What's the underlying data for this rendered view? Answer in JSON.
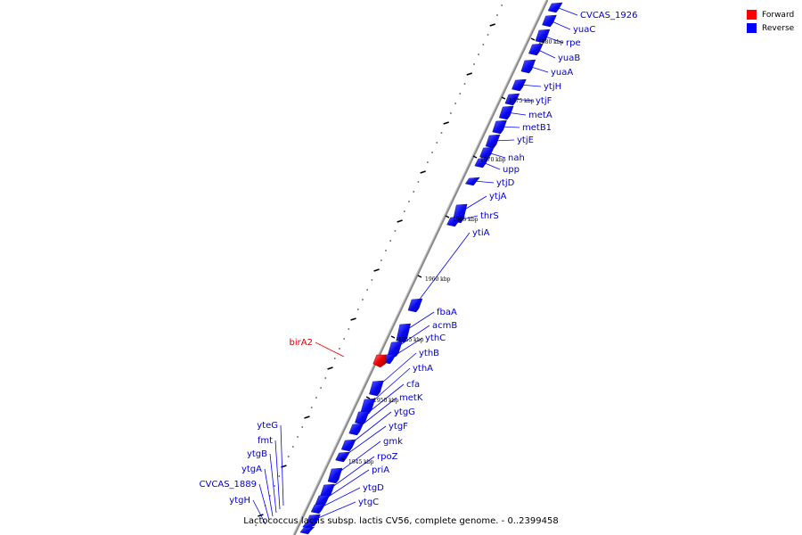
{
  "legend": {
    "forward_label": "Forward",
    "reverse_label": "Reverse",
    "forward_color": "#ff0000",
    "reverse_color": "#0000ff"
  },
  "caption": "Lactococcus lactis subsp. lactis CV56, complete genome. - 0..2399458",
  "scale_labels": [
    "1980 kbp",
    "1975 kbp",
    "1970 kbp",
    "1965 kbp",
    "1960 kbp",
    "1955 kbp",
    "1950 kbp",
    "1945 kbp"
  ],
  "genes_right": [
    {
      "name": "CVCAS_1926",
      "strand": "reverse"
    },
    {
      "name": "yuaC",
      "strand": "reverse"
    },
    {
      "name": "rpe",
      "strand": "reverse"
    },
    {
      "name": "yuaB",
      "strand": "reverse"
    },
    {
      "name": "yuaA",
      "strand": "reverse"
    },
    {
      "name": "ytjH",
      "strand": "reverse"
    },
    {
      "name": "ytjF",
      "strand": "reverse"
    },
    {
      "name": "metA",
      "strand": "reverse"
    },
    {
      "name": "metB1",
      "strand": "reverse"
    },
    {
      "name": "ytjE",
      "strand": "reverse"
    },
    {
      "name": "nah",
      "strand": "reverse"
    },
    {
      "name": "upp",
      "strand": "reverse"
    },
    {
      "name": "ytjD",
      "strand": "reverse"
    },
    {
      "name": "ytjA",
      "strand": "reverse"
    },
    {
      "name": "thrS",
      "strand": "reverse"
    },
    {
      "name": "ytiA",
      "strand": "reverse"
    },
    {
      "name": "fbaA",
      "strand": "reverse"
    },
    {
      "name": "acmB",
      "strand": "reverse"
    },
    {
      "name": "ythC",
      "strand": "reverse"
    },
    {
      "name": "ythB",
      "strand": "reverse"
    },
    {
      "name": "ythA",
      "strand": "reverse"
    },
    {
      "name": "cfa",
      "strand": "reverse"
    },
    {
      "name": "metK",
      "strand": "reverse"
    },
    {
      "name": "ytgG",
      "strand": "reverse"
    },
    {
      "name": "ytgF",
      "strand": "reverse"
    },
    {
      "name": "gmk",
      "strand": "reverse"
    },
    {
      "name": "rpoZ",
      "strand": "reverse"
    },
    {
      "name": "priA",
      "strand": "reverse"
    },
    {
      "name": "ytgD",
      "strand": "reverse"
    },
    {
      "name": "ytgC",
      "strand": "reverse"
    }
  ],
  "genes_left": [
    {
      "name": "birA2",
      "strand": "forward"
    },
    {
      "name": "yteG",
      "strand": "reverse"
    },
    {
      "name": "fmt",
      "strand": "reverse"
    },
    {
      "name": "ytgB",
      "strand": "reverse"
    },
    {
      "name": "ytgA",
      "strand": "reverse"
    },
    {
      "name": "CVCAS_1889",
      "strand": "reverse"
    },
    {
      "name": "ytgH",
      "strand": "reverse"
    }
  ]
}
